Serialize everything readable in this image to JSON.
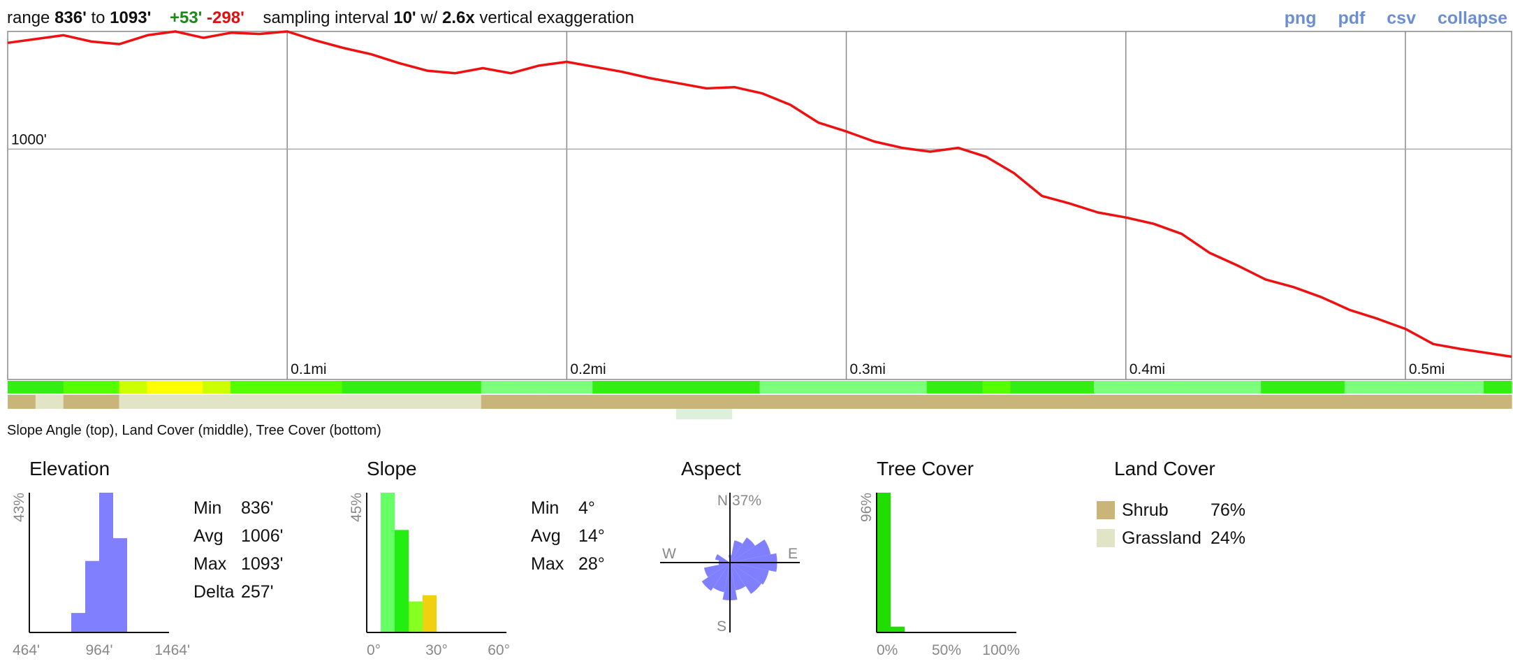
{
  "header": {
    "range_label": "range",
    "range_min": "836'",
    "to_label": "to",
    "range_max": "1093'",
    "gain": "+53'",
    "loss": "-298'",
    "interval_label": "sampling interval",
    "interval": "10'",
    "with_label": "w/",
    "exaggeration": "2.6x",
    "exaggeration_label": "vertical exaggeration"
  },
  "links": {
    "png": "png",
    "pdf": "pdf",
    "csv": "csv",
    "collapse": "collapse"
  },
  "colors": {
    "profile_line": "#ee1111",
    "histogram": "#8080ff",
    "tree_cover": "#22dd00",
    "shrub": "#c9b57a",
    "grassland": "#e2e4c6"
  },
  "caption": "Slope Angle (top), Land Cover (middle), Tree Cover (bottom)",
  "chart_data": [
    {
      "type": "line",
      "x": [
        0,
        0.01,
        0.02,
        0.03,
        0.04,
        0.05,
        0.06,
        0.07,
        0.08,
        0.09,
        0.1,
        0.11,
        0.12,
        0.13,
        0.14,
        0.15,
        0.16,
        0.17,
        0.18,
        0.19,
        0.2,
        0.21,
        0.22,
        0.23,
        0.24,
        0.25,
        0.26,
        0.27,
        0.28,
        0.29,
        0.3,
        0.31,
        0.32,
        0.33,
        0.34,
        0.35,
        0.36,
        0.37,
        0.38,
        0.39,
        0.4,
        0.41,
        0.42,
        0.43,
        0.44,
        0.45,
        0.46,
        0.47,
        0.48,
        0.49,
        0.5,
        0.51,
        0.52,
        0.538
      ],
      "y": [
        1084,
        1087,
        1090,
        1085,
        1083,
        1090,
        1093,
        1088,
        1092,
        1091,
        1093,
        1086,
        1080,
        1075,
        1068,
        1062,
        1060,
        1064,
        1060,
        1066,
        1069,
        1065,
        1061,
        1056,
        1052,
        1048,
        1049,
        1044,
        1035,
        1021,
        1014,
        1006,
        1001,
        998,
        1001,
        994,
        981,
        963,
        957,
        950,
        946,
        941,
        933,
        918,
        908,
        897,
        891,
        883,
        873,
        866,
        858,
        846,
        842,
        836
      ],
      "xlabel": "",
      "ylabel": "",
      "x_ticks": [
        {
          "value": 0.1,
          "label": "0.1mi"
        },
        {
          "value": 0.2,
          "label": "0.2mi"
        },
        {
          "value": 0.3,
          "label": "0.3mi"
        },
        {
          "value": 0.4,
          "label": "0.4mi"
        },
        {
          "value": 0.5,
          "label": "0.5mi"
        }
      ],
      "y_ticks": [
        {
          "value": 1000,
          "label": "1000'"
        }
      ],
      "xlim": [
        0,
        0.538
      ],
      "ylim": [
        818,
        1093
      ],
      "grid": true
    },
    {
      "type": "heatmap",
      "bands": {
        "slope_angle": [
          10,
          12,
          14,
          16,
          20,
          26,
          27,
          22,
          18,
          16,
          15,
          14,
          12,
          11,
          10,
          10,
          9,
          8,
          8,
          7,
          8,
          9,
          10,
          11,
          12,
          12,
          10,
          8,
          7,
          6,
          6,
          7,
          8,
          10,
          12,
          14,
          13,
          11,
          9,
          7,
          6,
          6,
          5,
          6,
          8,
          11,
          12,
          10,
          8,
          6,
          5,
          6,
          8,
          9
        ],
        "land_cover": [
          "Shrub",
          "Grassland",
          "Shrub",
          "Shrub",
          "Grassland",
          "Grassland",
          "Grassland",
          "Grassland",
          "Grassland",
          "Grassland",
          "Grassland",
          "Grassland",
          "Grassland",
          "Grassland",
          "Grassland",
          "Grassland",
          "Grassland",
          "Shrub",
          "Shrub",
          "Shrub",
          "Shrub",
          "Shrub",
          "Shrub",
          "Shrub",
          "Shrub",
          "Shrub",
          "Shrub",
          "Shrub",
          "Shrub",
          "Shrub",
          "Shrub",
          "Shrub",
          "Shrub",
          "Shrub",
          "Shrub",
          "Shrub",
          "Shrub",
          "Shrub",
          "Shrub",
          "Shrub",
          "Shrub",
          "Shrub",
          "Shrub",
          "Shrub",
          "Shrub",
          "Shrub",
          "Shrub",
          "Shrub",
          "Shrub",
          "Shrub",
          "Shrub",
          "Shrub",
          "Shrub",
          "Shrub"
        ],
        "tree_cover": [
          0,
          0,
          0,
          0,
          0,
          0,
          0,
          0,
          0,
          0,
          0,
          0,
          0,
          0,
          0,
          0,
          0,
          0,
          0,
          0,
          0,
          0,
          0,
          0,
          10,
          10,
          0,
          0,
          0,
          0,
          0,
          0,
          0,
          0,
          0,
          0,
          0,
          0,
          0,
          0,
          0,
          0,
          0,
          0,
          0,
          0,
          0,
          0,
          0,
          0,
          0,
          0,
          0,
          0
        ]
      }
    },
    {
      "type": "bar",
      "title": "Elevation",
      "y_max_label": "43%",
      "ymax": 43,
      "x_ticks": [
        "464'",
        "964'",
        "1464'"
      ],
      "xlim": [
        464,
        1464
      ],
      "bins": [
        {
          "from": 764,
          "to": 864,
          "value": 6
        },
        {
          "from": 864,
          "to": 964,
          "value": 22
        },
        {
          "from": 964,
          "to": 1064,
          "value": 43
        },
        {
          "from": 1064,
          "to": 1164,
          "value": 29
        }
      ],
      "stats": [
        {
          "label": "Min",
          "value": "836'"
        },
        {
          "label": "Avg",
          "value": "1006'"
        },
        {
          "label": "Max",
          "value": "1093'"
        },
        {
          "label": "Delta",
          "value": "257'"
        }
      ]
    },
    {
      "type": "bar",
      "title": "Slope",
      "y_max_label": "45%",
      "ymax": 45,
      "x_ticks": [
        "0°",
        "30°",
        "60°"
      ],
      "xlim": [
        0,
        60
      ],
      "bins": [
        {
          "from": 6,
          "to": 12,
          "value": 45,
          "color": "#66ff66"
        },
        {
          "from": 12,
          "to": 18,
          "value": 33,
          "color": "#22ee11"
        },
        {
          "from": 18,
          "to": 24,
          "value": 10,
          "color": "#88ff22"
        },
        {
          "from": 24,
          "to": 30,
          "value": 12,
          "color": "#f0d010"
        }
      ],
      "stats": [
        {
          "label": "Min",
          "value": "4°"
        },
        {
          "label": "Avg",
          "value": "14°"
        },
        {
          "label": "Max",
          "value": "28°"
        }
      ]
    },
    {
      "type": "pie",
      "title": "Aspect",
      "max_label": "37%",
      "directions": [
        "N",
        "NNE",
        "NE",
        "ENE",
        "E",
        "ESE",
        "SE",
        "SSE",
        "S",
        "SSW",
        "SW",
        "WSW",
        "W",
        "WNW",
        "NW",
        "NNW"
      ],
      "values": [
        4,
        12,
        16,
        22,
        25,
        21,
        20,
        15,
        20,
        16,
        18,
        14,
        6,
        8,
        0,
        0
      ],
      "axis_labels": {
        "n": "N",
        "s": "S",
        "e": "E",
        "w": "W"
      }
    },
    {
      "type": "bar",
      "title": "Tree Cover",
      "y_max_label": "96%",
      "ymax": 96,
      "x_ticks": [
        "0%",
        "50%",
        "100%"
      ],
      "xlim": [
        0,
        100
      ],
      "bins": [
        {
          "from": 0,
          "to": 10,
          "value": 96
        },
        {
          "from": 10,
          "to": 20,
          "value": 4
        }
      ]
    }
  ],
  "land_cover": {
    "title": "Land Cover",
    "items": [
      {
        "label": "Shrub",
        "percent": "76%"
      },
      {
        "label": "Grassland",
        "percent": "24%"
      }
    ]
  }
}
